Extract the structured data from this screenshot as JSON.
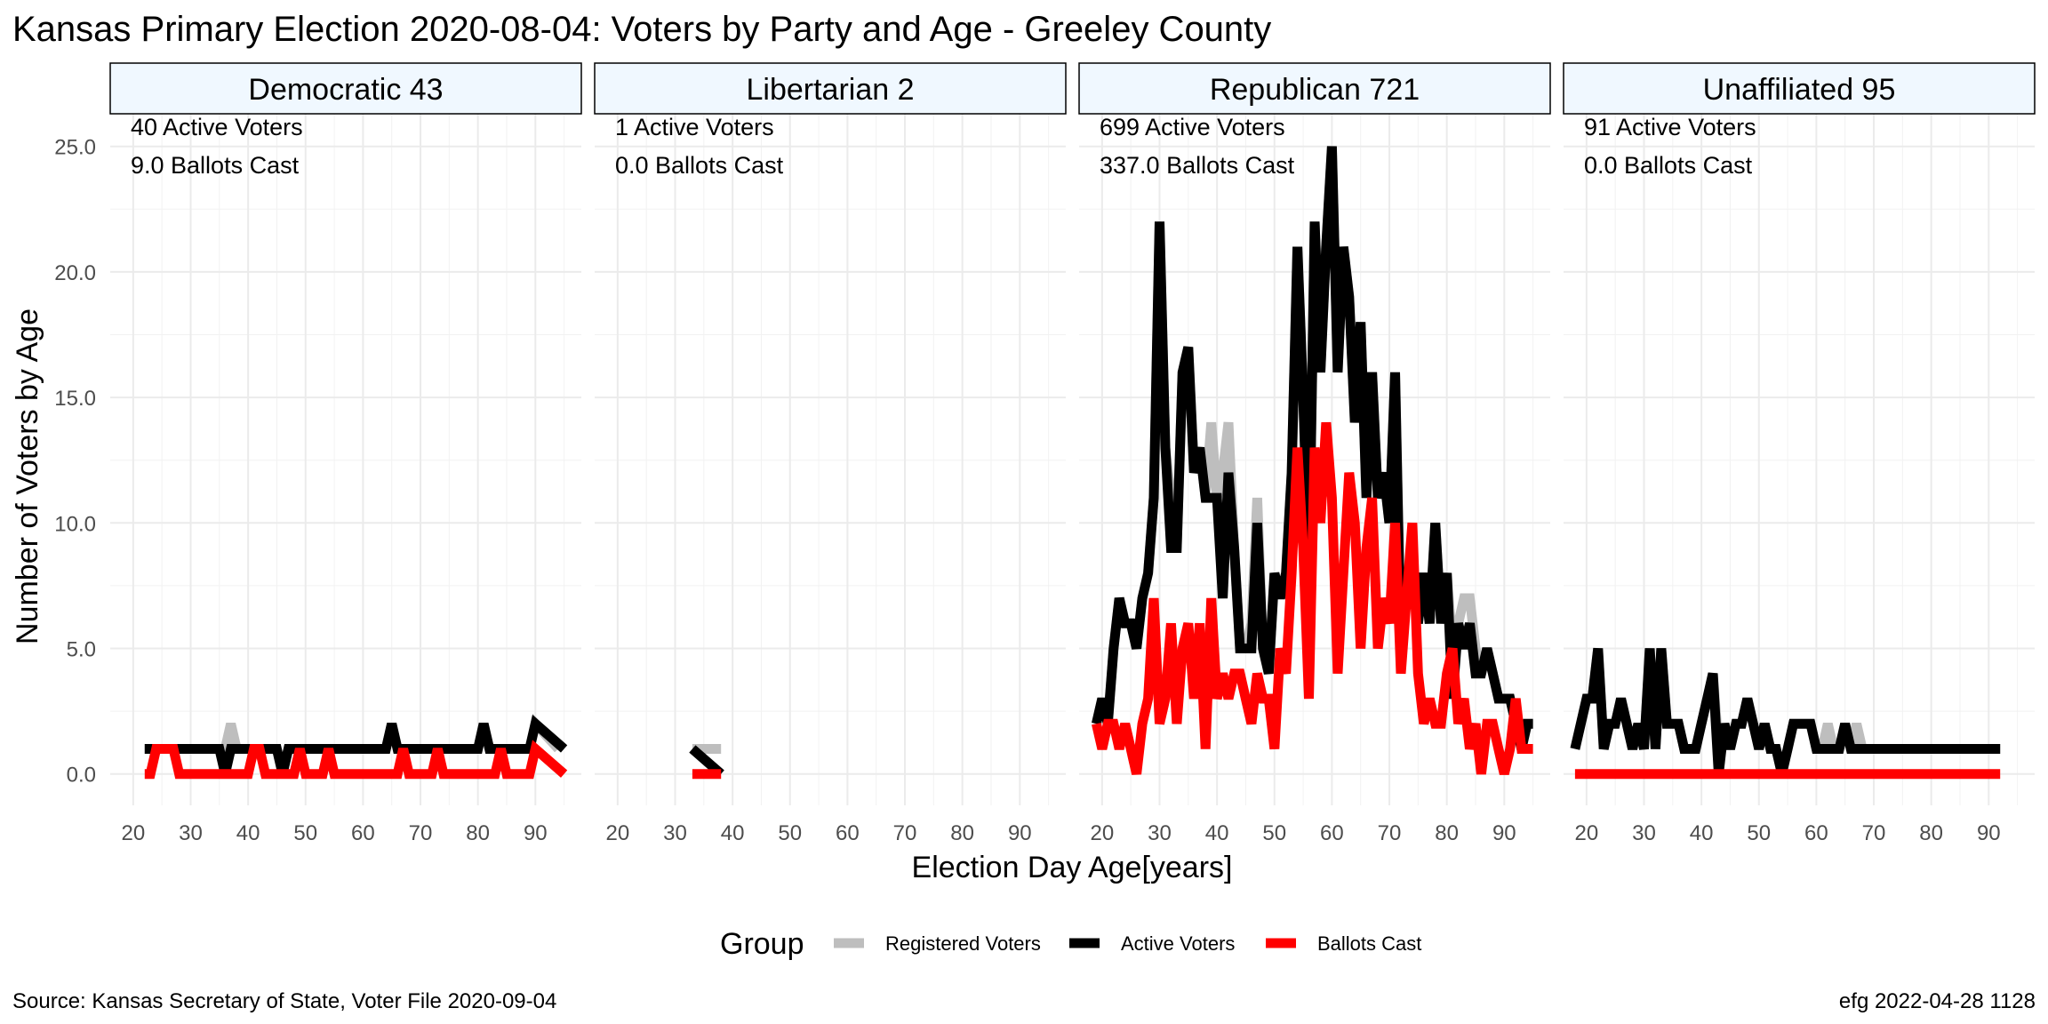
{
  "chart_data": {
    "type": "line",
    "title": "Kansas Primary Election 2020-08-04:  Voters by Party and Age - Greeley County",
    "xlabel": "Election Day Age[years]",
    "ylabel": "Number of Voters by Age",
    "xlim": [
      16,
      98
    ],
    "ylim": [
      -1.25,
      26.3
    ],
    "xticks": [
      20,
      30,
      40,
      50,
      60,
      70,
      80,
      90
    ],
    "yticks": [
      0,
      5,
      10,
      15,
      20,
      25
    ],
    "ytick_labels": [
      "0.0",
      "5.0",
      "10.0",
      "15.0",
      "20.0",
      "25.0"
    ],
    "xtick_labels": [
      "20",
      "30",
      "40",
      "50",
      "60",
      "70",
      "80",
      "90"
    ],
    "grid": true,
    "legend": {
      "title": "Group",
      "position": "bottom",
      "items": [
        {
          "label": "Registered Voters",
          "color": "#bebebe"
        },
        {
          "label": "Active Voters",
          "color": "#000000"
        },
        {
          "label": "Ballots Cast",
          "color": "#ff0000"
        }
      ]
    },
    "caption_left": "Source:  Kansas Secretary of State, Voter File  2020-09-04",
    "caption_right": "efg 2022-04-28 1128",
    "panels": [
      {
        "strip": "Democratic 43",
        "annotations": [
          "40 Active Voters",
          "9.0 Ballots Cast"
        ],
        "series": [
          {
            "name": "Registered Voters",
            "color": "#bebebe",
            "x": [
              22,
              35,
              36,
              37,
              38,
              39,
              45,
              46,
              47,
              64,
              65,
              66,
              80,
              81,
              82,
              89,
              90,
              94
            ],
            "y": [
              1,
              1,
              1,
              2,
              1,
              1,
              1,
              0,
              1,
              1,
              2,
              1,
              1,
              2,
              1,
              1,
              2,
              1
            ]
          },
          {
            "name": "Active Voters",
            "color": "#000000",
            "x": [
              22,
              35,
              36,
              37,
              38,
              45,
              46,
              47,
              63,
              64,
              65,
              66,
              80,
              81,
              82,
              89,
              90,
              95
            ],
            "y": [
              1,
              1,
              0,
              1,
              1,
              1,
              0,
              1,
              1,
              1,
              2,
              1,
              1,
              2,
              1,
              1,
              2,
              1
            ]
          },
          {
            "name": "Ballots Cast",
            "color": "#ff0000",
            "x": [
              22,
              23,
              24,
              25,
              26,
              27,
              28,
              29,
              40,
              41,
              42,
              43,
              44,
              48,
              49,
              50,
              53,
              54,
              55,
              66,
              67,
              68,
              72,
              73,
              74,
              83,
              84,
              85,
              89,
              90,
              95
            ],
            "y": [
              0,
              0,
              1,
              1,
              1,
              1,
              0,
              0,
              0,
              1,
              1,
              0,
              0,
              0,
              1,
              0,
              0,
              1,
              0,
              0,
              1,
              0,
              0,
              1,
              0,
              0,
              1,
              0,
              0,
              1,
              0
            ]
          }
        ]
      },
      {
        "strip": "Libertarian 2",
        "annotations": [
          "1 Active Voters",
          "0.0 Ballots Cast"
        ],
        "series": [
          {
            "name": "Registered Voters",
            "color": "#bebebe",
            "x": [
              33,
              38
            ],
            "y": [
              1,
              1
            ]
          },
          {
            "name": "Active Voters",
            "color": "#000000",
            "x": [
              33,
              38
            ],
            "y": [
              1,
              0
            ]
          },
          {
            "name": "Ballots Cast",
            "color": "#ff0000",
            "x": [
              33,
              38
            ],
            "y": [
              0,
              0
            ]
          }
        ]
      },
      {
        "strip": "Republican 721",
        "annotations": [
          "699 Active Voters",
          "337.0 Ballots Cast"
        ],
        "series": [
          {
            "name": "Registered Voters",
            "color": "#bebebe",
            "x": [
              19,
              20,
              21,
              22,
              23,
              24,
              25,
              26,
              27,
              28,
              29,
              30,
              31,
              32,
              33,
              34,
              35,
              36,
              37,
              38,
              39,
              40,
              41,
              42,
              43,
              44,
              45,
              46,
              47,
              48,
              49,
              50,
              51,
              52,
              53,
              54,
              55,
              56,
              57,
              58,
              59,
              60,
              61,
              62,
              63,
              64,
              65,
              66,
              67,
              68,
              69,
              70,
              71,
              72,
              73,
              74,
              75,
              76,
              77,
              78,
              79,
              80,
              81,
              82,
              83,
              84,
              85,
              86,
              87,
              88,
              89,
              90,
              91,
              92,
              93,
              94,
              95
            ],
            "y": [
              2,
              3,
              2,
              5,
              7,
              6,
              6,
              5,
              7,
              8,
              11,
              22,
              13,
              11,
              9,
              16,
              17,
              12,
              13,
              11,
              14,
              11,
              12,
              14,
              9,
              5,
              5,
              6,
              11,
              5,
              4,
              8,
              7,
              8,
              12,
              21,
              15,
              8,
              22,
              16,
              21,
              25,
              16,
              21,
              19,
              14,
              18,
              11,
              16,
              11,
              12,
              10,
              16,
              5,
              8,
              8,
              6,
              8,
              6,
              10,
              6,
              8,
              5,
              6,
              7,
              7,
              5,
              4,
              5,
              4,
              3,
              3,
              3,
              2,
              2,
              2,
              2
            ]
          },
          {
            "name": "Active Voters",
            "color": "#000000",
            "x": [
              19,
              20,
              21,
              22,
              23,
              24,
              25,
              26,
              27,
              28,
              29,
              30,
              31,
              32,
              33,
              34,
              35,
              36,
              37,
              38,
              39,
              40,
              41,
              42,
              43,
              44,
              45,
              46,
              47,
              48,
              49,
              50,
              51,
              52,
              53,
              54,
              55,
              56,
              57,
              58,
              59,
              60,
              61,
              62,
              63,
              64,
              65,
              66,
              67,
              68,
              69,
              70,
              71,
              72,
              73,
              74,
              75,
              76,
              77,
              78,
              79,
              80,
              81,
              82,
              83,
              84,
              85,
              86,
              87,
              88,
              89,
              90,
              91,
              92,
              93,
              94,
              95
            ],
            "y": [
              2,
              3,
              2,
              5,
              7,
              6,
              6,
              5,
              7,
              8,
              11,
              22,
              13,
              9,
              9,
              16,
              17,
              12,
              13,
              11,
              11,
              11,
              7,
              12,
              9,
              5,
              5,
              5,
              10,
              5,
              4,
              8,
              7,
              8,
              12,
              21,
              15,
              8,
              22,
              16,
              21,
              25,
              16,
              21,
              19,
              14,
              18,
              11,
              16,
              11,
              12,
              10,
              16,
              5,
              8,
              8,
              6,
              8,
              6,
              10,
              6,
              8,
              3,
              6,
              5,
              6,
              4,
              4,
              5,
              4,
              3,
              3,
              3,
              2,
              1,
              2,
              2
            ]
          },
          {
            "name": "Ballots Cast",
            "color": "#ff0000",
            "x": [
              19,
              20,
              21,
              22,
              23,
              24,
              25,
              26,
              27,
              28,
              29,
              30,
              31,
              32,
              33,
              34,
              35,
              36,
              37,
              38,
              39,
              40,
              41,
              42,
              43,
              44,
              45,
              46,
              47,
              48,
              49,
              50,
              51,
              52,
              53,
              54,
              55,
              56,
              57,
              58,
              59,
              60,
              61,
              62,
              63,
              64,
              65,
              66,
              67,
              68,
              69,
              70,
              71,
              72,
              73,
              74,
              75,
              76,
              77,
              78,
              79,
              80,
              81,
              82,
              83,
              84,
              85,
              86,
              87,
              88,
              89,
              90,
              91,
              92,
              93,
              94,
              95
            ],
            "y": [
              2,
              1,
              2,
              2,
              1,
              2,
              1,
              0,
              2,
              3,
              7,
              2,
              3,
              6,
              2,
              5,
              6,
              3,
              6,
              1,
              7,
              3,
              4,
              3,
              4,
              4,
              3,
              2,
              4,
              3,
              3,
              1,
              5,
              4,
              8,
              13,
              9,
              3,
              13,
              10,
              14,
              11,
              4,
              8,
              12,
              10,
              5,
              9,
              11,
              5,
              7,
              6,
              10,
              4,
              7,
              10,
              4,
              2,
              3,
              2,
              2,
              4,
              5,
              2,
              3,
              1,
              2,
              0,
              2,
              2,
              1,
              0,
              1,
              3,
              1,
              1,
              1
            ]
          }
        ]
      },
      {
        "strip": "Unaffiliated 95",
        "annotations": [
          "91 Active Voters",
          "0.0 Ballots Cast"
        ],
        "series": [
          {
            "name": "Registered Voters",
            "color": "#bebebe",
            "x": [
              18,
              19,
              20,
              21,
              22,
              23,
              24,
              25,
              26,
              27,
              28,
              29,
              30,
              31,
              32,
              33,
              34,
              35,
              36,
              37,
              38,
              39,
              40,
              41,
              42,
              43,
              44,
              45,
              46,
              47,
              48,
              49,
              50,
              51,
              52,
              53,
              54,
              55,
              56,
              57,
              58,
              59,
              60,
              61,
              62,
              63,
              64,
              65,
              66,
              67,
              68,
              69,
              70,
              92
            ],
            "y": [
              1,
              2,
              3,
              3,
              5,
              1,
              2,
              2,
              3,
              2,
              1,
              2,
              1,
              5,
              1,
              5,
              2,
              2,
              2,
              1,
              1,
              1,
              2,
              3,
              4,
              1,
              2,
              1,
              2,
              2,
              3,
              2,
              1,
              2,
              1,
              1,
              0,
              1,
              2,
              2,
              2,
              2,
              1,
              1,
              2,
              1,
              1,
              2,
              1,
              2,
              1,
              1,
              1,
              1
            ]
          },
          {
            "name": "Active Voters",
            "color": "#000000",
            "x": [
              18,
              19,
              20,
              21,
              22,
              23,
              24,
              25,
              26,
              27,
              28,
              29,
              30,
              31,
              32,
              33,
              34,
              35,
              36,
              37,
              38,
              39,
              40,
              41,
              42,
              43,
              44,
              45,
              46,
              47,
              48,
              49,
              50,
              51,
              52,
              53,
              54,
              55,
              56,
              57,
              58,
              59,
              60,
              61,
              62,
              63,
              64,
              65,
              66,
              67,
              92
            ],
            "y": [
              1,
              2,
              3,
              3,
              5,
              1,
              2,
              2,
              3,
              2,
              1,
              2,
              1,
              5,
              1,
              5,
              2,
              2,
              2,
              1,
              1,
              1,
              2,
              3,
              4,
              0,
              2,
              1,
              2,
              2,
              3,
              2,
              1,
              2,
              1,
              1,
              0,
              1,
              2,
              2,
              2,
              2,
              1,
              1,
              1,
              1,
              1,
              2,
              1,
              1,
              1
            ]
          },
          {
            "name": "Ballots Cast",
            "color": "#ff0000",
            "x": [
              18,
              92
            ],
            "y": [
              0,
              0
            ]
          }
        ]
      }
    ]
  }
}
